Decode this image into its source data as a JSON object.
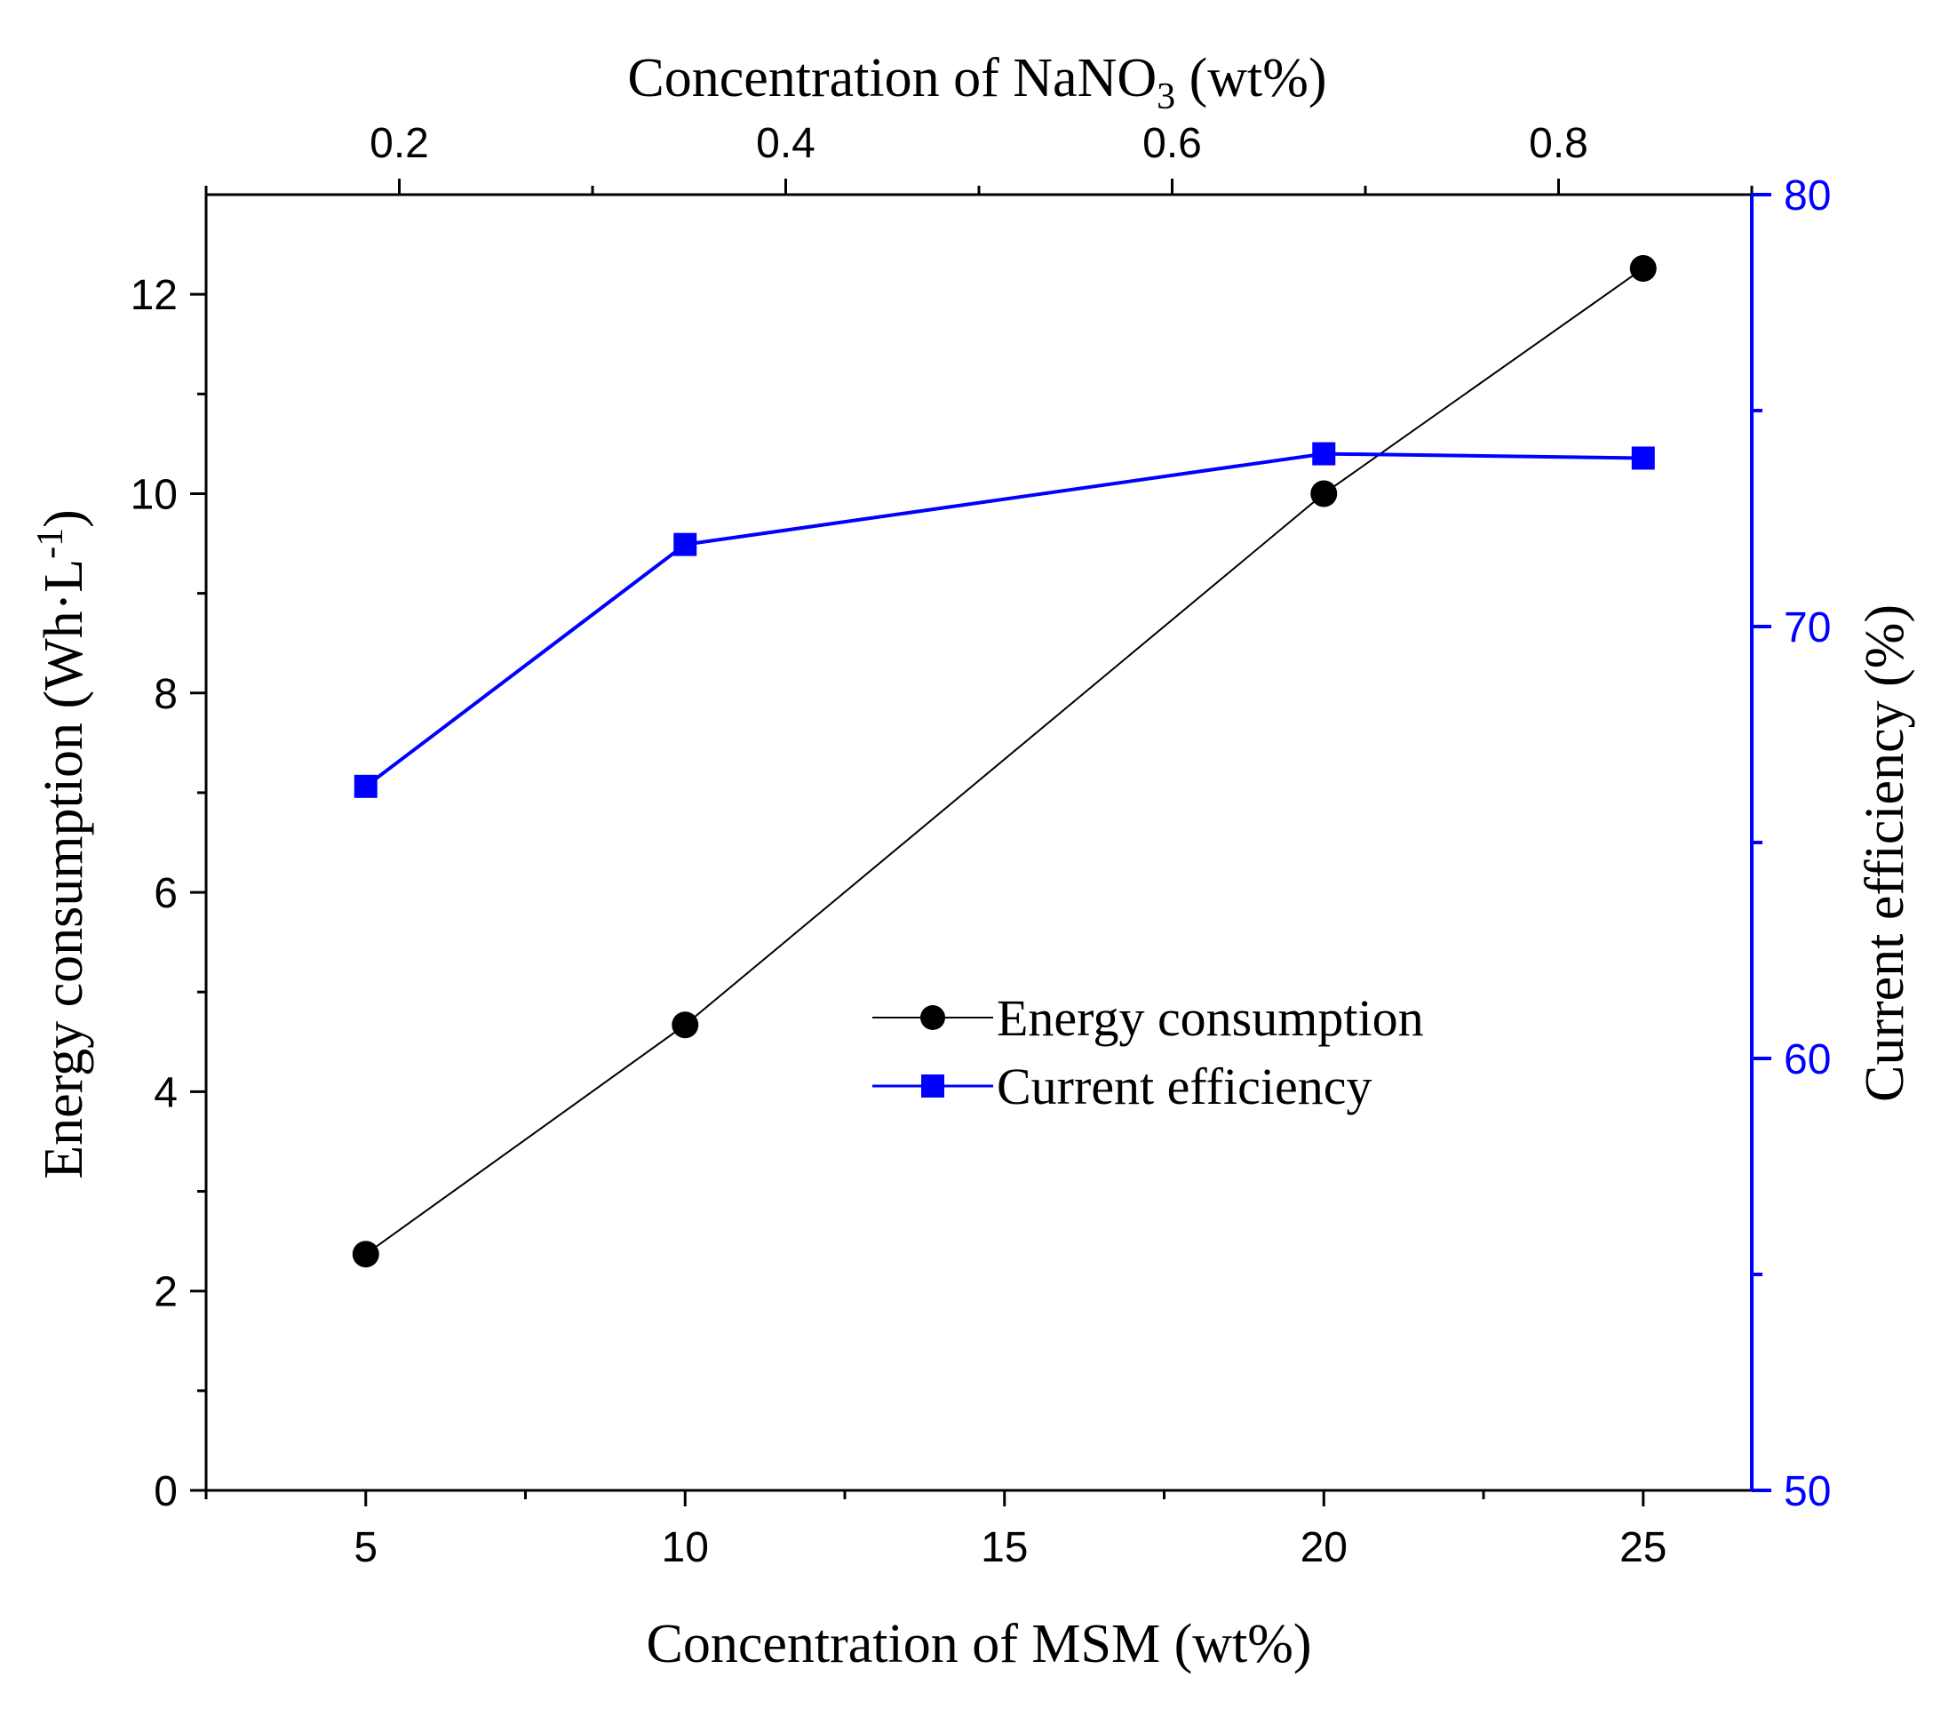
{
  "chart_data": {
    "type": "line",
    "x_bottom": {
      "label": "Concentration of MSM (wt%)",
      "range": [
        2.5,
        26.7
      ],
      "ticks": [
        5,
        10,
        15,
        20,
        25
      ],
      "minor_step": 2.5
    },
    "x_top": {
      "label_prefix": "Concentration of NaNO",
      "label_sub": "3",
      "label_suffix": " (wt%)",
      "range": [
        0.1,
        0.9
      ],
      "ticks": [
        0.2,
        0.4,
        0.6,
        0.8
      ],
      "tick_labels": [
        "0.2",
        "0.4",
        "0.6",
        "0.8"
      ],
      "minor_step": 0.1
    },
    "y_left": {
      "label": "Energy consumption (Wh·L",
      "label_sup": "-1",
      "label_close": ")",
      "range": [
        0,
        13
      ],
      "ticks": [
        0,
        2,
        4,
        6,
        8,
        10,
        12
      ],
      "minor_step": 1
    },
    "y_right": {
      "label": "Current efficiency (%)",
      "range": [
        50,
        80
      ],
      "ticks": [
        50,
        60,
        70,
        80
      ],
      "minor_step": 5,
      "color": "#0000ff"
    },
    "series": [
      {
        "name": "Energy consumption",
        "axis": "left",
        "marker": "circle",
        "color": "#000000",
        "x": [
          5,
          10,
          20,
          25
        ],
        "values": [
          2.37,
          4.67,
          10.0,
          12.26
        ]
      },
      {
        "name": "Current efficiency",
        "axis": "right",
        "marker": "square",
        "color": "#0000ff",
        "x": [
          5,
          10,
          20,
          25
        ],
        "values": [
          66.3,
          71.9,
          74.0,
          73.9
        ]
      }
    ],
    "legend": {
      "position": "center-right"
    }
  }
}
